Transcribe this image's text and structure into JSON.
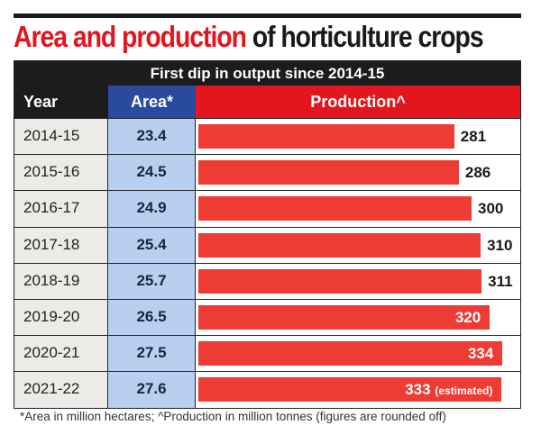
{
  "chart_data": {
    "type": "table",
    "title": "Area and production",
    "title_rest": "of horticulture crops",
    "subtitle": "First dip in output since 2014-15",
    "columns": [
      "Year",
      "Area*",
      "Production^"
    ],
    "categories": [
      "2014-15",
      "2015-16",
      "2016-17",
      "2017-18",
      "2018-19",
      "2019-20",
      "2020-21",
      "2021-22"
    ],
    "series": [
      {
        "name": "Area*",
        "values": [
          23.4,
          24.5,
          24.9,
          25.4,
          25.7,
          26.5,
          27.5,
          27.6
        ]
      },
      {
        "name": "Production^",
        "values": [
          281,
          286,
          300,
          310,
          311,
          320,
          334,
          333
        ]
      }
    ],
    "annotations": {
      "2021-22": "(estimated)"
    },
    "footnote": "*Area in million hectares; ^Production in million tonnes (figures are rounded off)",
    "colors": {
      "title_red": "#e3161e",
      "area_header": "#2a4aa0",
      "area_cells": "#b8cff0",
      "production_header": "#e3161e",
      "bar": "#ee3b33",
      "subtitle_band": "#1c1c1c"
    }
  }
}
